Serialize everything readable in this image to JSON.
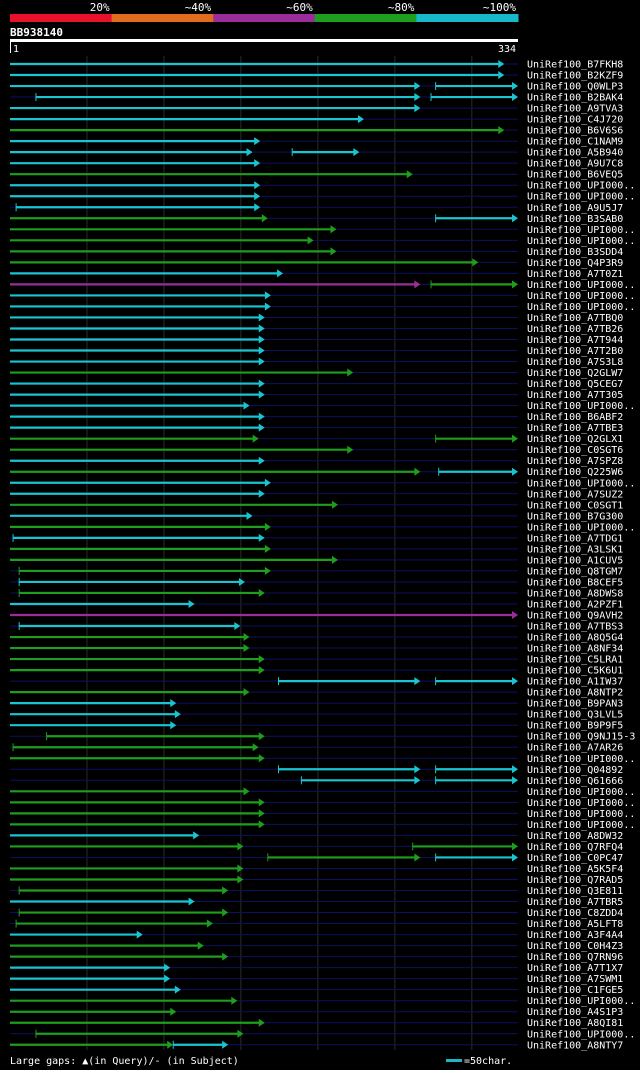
{
  "header": {
    "query_id": "BB938140",
    "ruler_start": "1",
    "ruler_end": "334"
  },
  "color_key": [
    {
      "label": "20%",
      "color": "#e8102a"
    },
    {
      "label": "~40%",
      "color": "#e06c1c"
    },
    {
      "label": "~60%",
      "color": "#9b2d9b"
    },
    {
      "label": "~80%",
      "color": "#1e9e1e"
    },
    {
      "label": "~100%",
      "color": "#19b8c8"
    }
  ],
  "footer": {
    "gaps_text": "Large gaps: ",
    "gaps_query": "(in Query)/",
    "gaps_subject": "- (in Subject)",
    "scale_text": "=50char."
  },
  "chart_data": {
    "type": "alignment",
    "query_length": 334,
    "hits": [
      {
        "name": "UniRef100_B7FKH8",
        "segs": [
          [
            1,
            325,
            "c"
          ]
        ]
      },
      {
        "name": "UniRef100_B2KZF9",
        "segs": [
          [
            1,
            325,
            "c"
          ]
        ]
      },
      {
        "name": "UniRef100_Q0WLP3",
        "segs": [
          [
            1,
            270,
            "c"
          ],
          [
            280,
            334,
            "c"
          ]
        ]
      },
      {
        "name": "UniRef100_B2BAK4",
        "segs": [
          [
            18,
            270,
            "c"
          ],
          [
            277,
            334,
            "c"
          ]
        ]
      },
      {
        "name": "UniRef100_A9TVA3",
        "segs": [
          [
            1,
            270,
            "c"
          ]
        ]
      },
      {
        "name": "UniRef100_C4J720",
        "segs": [
          [
            1,
            233,
            "c"
          ]
        ]
      },
      {
        "name": "UniRef100_B6V6S6",
        "segs": [
          [
            1,
            325,
            "g"
          ]
        ]
      },
      {
        "name": "UniRef100_C1NAM9",
        "segs": [
          [
            1,
            165,
            "c"
          ]
        ]
      },
      {
        "name": "UniRef100_A5B940",
        "segs": [
          [
            1,
            160,
            "c"
          ],
          [
            186,
            230,
            "c"
          ]
        ]
      },
      {
        "name": "UniRef100_A9U7C8",
        "segs": [
          [
            1,
            165,
            "c"
          ]
        ]
      },
      {
        "name": "UniRef100_B6VEQ5",
        "segs": [
          [
            1,
            265,
            "g"
          ]
        ]
      },
      {
        "name": "UniRef100_UPI000..",
        "segs": [
          [
            1,
            165,
            "c"
          ]
        ]
      },
      {
        "name": "UniRef100_UPI000..",
        "segs": [
          [
            1,
            165,
            "c"
          ]
        ]
      },
      {
        "name": "UniRef100_A9U5J7",
        "segs": [
          [
            5,
            165,
            "c"
          ]
        ]
      },
      {
        "name": "UniRef100_B3SAB0",
        "segs": [
          [
            1,
            170,
            "g"
          ],
          [
            280,
            334,
            "c"
          ]
        ]
      },
      {
        "name": "UniRef100_UPI000..",
        "segs": [
          [
            1,
            215,
            "g"
          ]
        ]
      },
      {
        "name": "UniRef100_UPI000..",
        "segs": [
          [
            1,
            200,
            "g"
          ]
        ]
      },
      {
        "name": "UniRef100_B3SDD4",
        "segs": [
          [
            1,
            215,
            "g"
          ]
        ]
      },
      {
        "name": "UniRef100_Q4P3R9",
        "segs": [
          [
            1,
            308,
            "g"
          ]
        ]
      },
      {
        "name": "UniRef100_A7T0Z1",
        "segs": [
          [
            1,
            180,
            "c"
          ]
        ]
      },
      {
        "name": "UniRef100_UPI000..",
        "segs": [
          [
            1,
            270,
            "p"
          ],
          [
            277,
            334,
            "g"
          ]
        ]
      },
      {
        "name": "UniRef100_UPI000..",
        "segs": [
          [
            1,
            172,
            "c"
          ]
        ]
      },
      {
        "name": "UniRef100_UPI000..",
        "segs": [
          [
            1,
            172,
            "c"
          ]
        ]
      },
      {
        "name": "UniRef100_A7TBQ0",
        "segs": [
          [
            1,
            168,
            "c"
          ]
        ]
      },
      {
        "name": "UniRef100_A7TB26",
        "segs": [
          [
            1,
            168,
            "c"
          ]
        ]
      },
      {
        "name": "UniRef100_A7T944",
        "segs": [
          [
            1,
            168,
            "c"
          ]
        ]
      },
      {
        "name": "UniRef100_A7T2B0",
        "segs": [
          [
            1,
            168,
            "c"
          ]
        ]
      },
      {
        "name": "UniRef100_A7S3L8",
        "segs": [
          [
            1,
            168,
            "c"
          ]
        ]
      },
      {
        "name": "UniRef100_Q2GLW7",
        "segs": [
          [
            1,
            226,
            "g"
          ]
        ]
      },
      {
        "name": "UniRef100_Q5CEG7",
        "segs": [
          [
            1,
            168,
            "c"
          ]
        ]
      },
      {
        "name": "UniRef100_A7T305",
        "segs": [
          [
            1,
            168,
            "c"
          ]
        ]
      },
      {
        "name": "UniRef100_UPI000..",
        "segs": [
          [
            1,
            158,
            "c"
          ]
        ]
      },
      {
        "name": "UniRef100_B6ABF2",
        "segs": [
          [
            1,
            168,
            "c"
          ]
        ]
      },
      {
        "name": "UniRef100_A7TBE3",
        "segs": [
          [
            1,
            168,
            "c"
          ]
        ]
      },
      {
        "name": "UniRef100_Q2GLX1",
        "segs": [
          [
            1,
            164,
            "g"
          ],
          [
            280,
            334,
            "g"
          ]
        ]
      },
      {
        "name": "UniRef100_C0SGT6",
        "segs": [
          [
            1,
            226,
            "g"
          ]
        ]
      },
      {
        "name": "UniRef100_A7SPZ8",
        "segs": [
          [
            1,
            168,
            "c"
          ]
        ]
      },
      {
        "name": "UniRef100_Q225W6",
        "segs": [
          [
            1,
            270,
            "g"
          ],
          [
            282,
            334,
            "c"
          ]
        ]
      },
      {
        "name": "UniRef100_UPI000..",
        "segs": [
          [
            1,
            172,
            "c"
          ]
        ]
      },
      {
        "name": "UniRef100_A7SUZ2",
        "segs": [
          [
            1,
            168,
            "c"
          ]
        ]
      },
      {
        "name": "UniRef100_C0SGT1",
        "segs": [
          [
            1,
            216,
            "g"
          ]
        ]
      },
      {
        "name": "UniRef100_B7G300",
        "segs": [
          [
            1,
            160,
            "c"
          ]
        ]
      },
      {
        "name": "UniRef100_UPI000..",
        "segs": [
          [
            1,
            172,
            "g"
          ]
        ]
      },
      {
        "name": "UniRef100_A7TDG1",
        "segs": [
          [
            3,
            168,
            "c"
          ]
        ]
      },
      {
        "name": "UniRef100_A3LSK1",
        "segs": [
          [
            1,
            172,
            "g"
          ]
        ]
      },
      {
        "name": "UniRef100_A1CUV5",
        "segs": [
          [
            1,
            216,
            "g"
          ]
        ]
      },
      {
        "name": "UniRef100_Q8TGM7",
        "segs": [
          [
            7,
            172,
            "g"
          ]
        ]
      },
      {
        "name": "UniRef100_B8CEF5",
        "segs": [
          [
            7,
            155,
            "c"
          ]
        ]
      },
      {
        "name": "UniRef100_A8DWS8",
        "segs": [
          [
            7,
            168,
            "g"
          ]
        ]
      },
      {
        "name": "UniRef100_A2PZF1",
        "segs": [
          [
            1,
            122,
            "c"
          ]
        ]
      },
      {
        "name": "UniRef100_Q9AVH2",
        "segs": [
          [
            1,
            334,
            "p"
          ]
        ]
      },
      {
        "name": "UniRef100_A7TBS3",
        "segs": [
          [
            7,
            152,
            "c"
          ]
        ]
      },
      {
        "name": "UniRef100_A8Q5G4",
        "segs": [
          [
            1,
            158,
            "g"
          ]
        ]
      },
      {
        "name": "UniRef100_A8NF34",
        "segs": [
          [
            1,
            158,
            "g"
          ]
        ]
      },
      {
        "name": "UniRef100_C5LRA1",
        "segs": [
          [
            1,
            168,
            "g"
          ]
        ]
      },
      {
        "name": "UniRef100_C5K6U1",
        "segs": [
          [
            1,
            168,
            "g"
          ]
        ]
      },
      {
        "name": "UniRef100_A1IW37",
        "segs": [
          [
            177,
            270,
            "c"
          ],
          [
            280,
            334,
            "c"
          ]
        ]
      },
      {
        "name": "UniRef100_A8NTP2",
        "segs": [
          [
            1,
            158,
            "g"
          ]
        ]
      },
      {
        "name": "UniRef100_B9PAN3",
        "segs": [
          [
            1,
            110,
            "c"
          ]
        ]
      },
      {
        "name": "UniRef100_Q3LVL5",
        "segs": [
          [
            1,
            113,
            "c"
          ]
        ]
      },
      {
        "name": "UniRef100_B9P9F5",
        "segs": [
          [
            1,
            110,
            "c"
          ]
        ]
      },
      {
        "name": "UniRef100_Q9NJ15-3",
        "segs": [
          [
            25,
            168,
            "g"
          ]
        ]
      },
      {
        "name": "UniRef100_A7AR26",
        "segs": [
          [
            3,
            164,
            "g"
          ]
        ]
      },
      {
        "name": "UniRef100_UPI000..",
        "segs": [
          [
            1,
            168,
            "g"
          ]
        ]
      },
      {
        "name": "UniRef100_Q04892",
        "segs": [
          [
            177,
            270,
            "c"
          ],
          [
            280,
            334,
            "c"
          ]
        ]
      },
      {
        "name": "UniRef100_Q61666",
        "segs": [
          [
            192,
            270,
            "c"
          ],
          [
            280,
            334,
            "c"
          ]
        ]
      },
      {
        "name": "UniRef100_UPI000..",
        "segs": [
          [
            1,
            158,
            "g"
          ]
        ]
      },
      {
        "name": "UniRef100_UPI000..",
        "segs": [
          [
            1,
            168,
            "g"
          ]
        ]
      },
      {
        "name": "UniRef100_UPI000..",
        "segs": [
          [
            1,
            168,
            "g"
          ]
        ]
      },
      {
        "name": "UniRef100_UPI000..",
        "segs": [
          [
            1,
            168,
            "g"
          ]
        ]
      },
      {
        "name": "UniRef100_A8DW32",
        "segs": [
          [
            1,
            125,
            "c"
          ]
        ]
      },
      {
        "name": "UniRef100_Q7RFQ4",
        "segs": [
          [
            1,
            154,
            "g"
          ],
          [
            265,
            334,
            "g"
          ]
        ]
      },
      {
        "name": "UniRef100_C0PC47",
        "segs": [
          [
            170,
            270,
            "g"
          ],
          [
            280,
            334,
            "c"
          ]
        ]
      },
      {
        "name": "UniRef100_A5K5F4",
        "segs": [
          [
            1,
            154,
            "g"
          ]
        ]
      },
      {
        "name": "UniRef100_Q7RAD5",
        "segs": [
          [
            1,
            154,
            "g"
          ]
        ]
      },
      {
        "name": "UniRef100_Q3E811",
        "segs": [
          [
            7,
            144,
            "g"
          ]
        ]
      },
      {
        "name": "UniRef100_A7TBR5",
        "segs": [
          [
            1,
            122,
            "c"
          ]
        ]
      },
      {
        "name": "UniRef100_C8ZDD4",
        "segs": [
          [
            7,
            144,
            "g"
          ]
        ]
      },
      {
        "name": "UniRef100_A5LFT8",
        "segs": [
          [
            5,
            134,
            "g"
          ]
        ]
      },
      {
        "name": "UniRef100_A3F4A4",
        "segs": [
          [
            1,
            88,
            "c"
          ]
        ]
      },
      {
        "name": "UniRef100_C0H4Z3",
        "segs": [
          [
            1,
            128,
            "g"
          ]
        ]
      },
      {
        "name": "UniRef100_Q7RN96",
        "segs": [
          [
            1,
            144,
            "g"
          ]
        ]
      },
      {
        "name": "UniRef100_A7T1X7",
        "segs": [
          [
            1,
            106,
            "c"
          ]
        ]
      },
      {
        "name": "UniRef100_A7SWM1",
        "segs": [
          [
            1,
            106,
            "c"
          ]
        ]
      },
      {
        "name": "UniRef100_C1FGE5",
        "segs": [
          [
            1,
            113,
            "c"
          ]
        ]
      },
      {
        "name": "UniRef100_UPI000..",
        "segs": [
          [
            1,
            150,
            "g"
          ]
        ]
      },
      {
        "name": "UniRef100_A4S1P3",
        "segs": [
          [
            1,
            110,
            "g"
          ]
        ]
      },
      {
        "name": "UniRef100_A8QI81",
        "segs": [
          [
            1,
            168,
            "g"
          ]
        ]
      },
      {
        "name": "UniRef100_UPI000..",
        "segs": [
          [
            18,
            154,
            "g"
          ]
        ]
      },
      {
        "name": "UniRef100_A8NTY7",
        "segs": [
          [
            1,
            108,
            "g"
          ],
          [
            108,
            144,
            "c"
          ]
        ]
      }
    ]
  }
}
